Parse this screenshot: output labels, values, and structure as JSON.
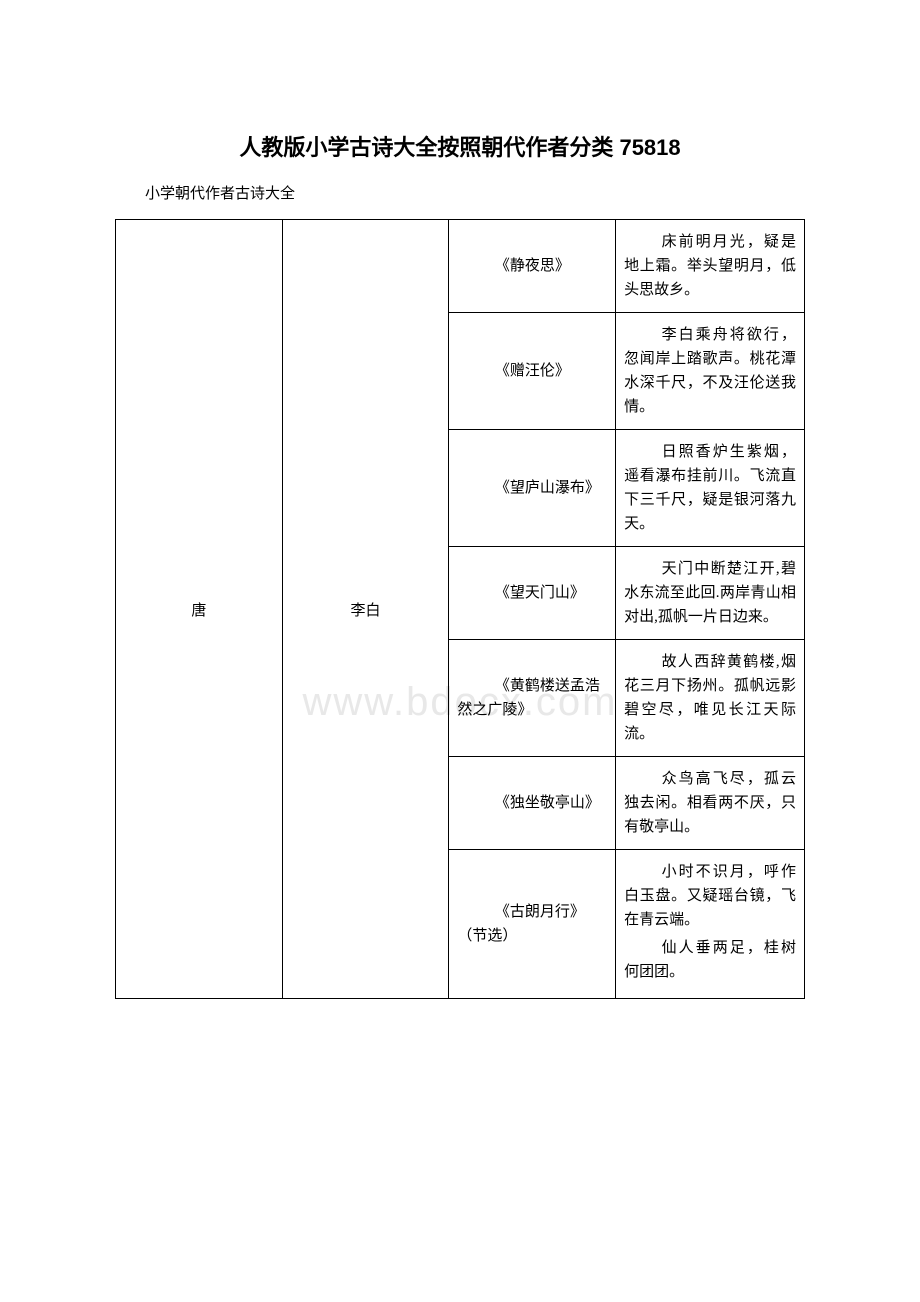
{
  "title": "人教版小学古诗大全按照朝代作者分类 75818",
  "subtitle": "小学朝代作者古诗大全",
  "watermark": "www.bdocx.com",
  "table": {
    "dynasty": "唐",
    "author": "李白",
    "rows": [
      {
        "poem": "《静夜思》",
        "content": "床前明月光，疑是地上霜。举头望明月，低头思故乡。"
      },
      {
        "poem": "《赠汪伦》",
        "content": "李白乘舟将欲行，忽闻岸上踏歌声。桃花潭水深千尺，不及汪伦送我情。"
      },
      {
        "poem": "《望庐山瀑布》",
        "content": "日照香炉生紫烟，遥看瀑布挂前川。飞流直下三千尺，疑是银河落九天。"
      },
      {
        "poem": "《望天门山》",
        "content": "天门中断楚江开,碧水东流至此回.两岸青山相对出,孤帆一片日边来。"
      },
      {
        "poem": "《黄鹤楼送孟浩然之广陵》",
        "content": "故人西辞黄鹤楼,烟花三月下扬州。孤帆远影碧空尽，唯见长江天际流。"
      },
      {
        "poem": "《独坐敬亭山》",
        "content": "众鸟高飞尽，孤云独去闲。相看两不厌，只有敬亭山。"
      },
      {
        "poem": "《古朗月行》（节选）",
        "content_parts": [
          "小时不识月，呼作白玉盘。又疑瑶台镜，飞在青云端。",
          "仙人垂两足，桂树何团团。"
        ]
      }
    ]
  },
  "colors": {
    "background": "#ffffff",
    "text": "#000000",
    "border": "#000000",
    "watermark": "#e8e8e8"
  },
  "fonts": {
    "title_family": "SimHei",
    "body_family": "SimSun",
    "title_size": 22,
    "body_size": 15
  }
}
